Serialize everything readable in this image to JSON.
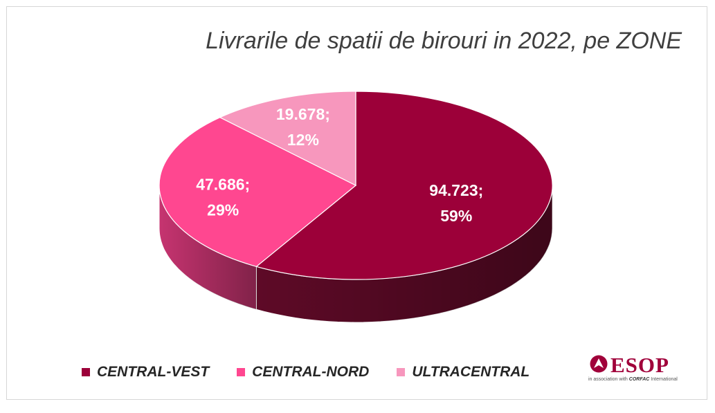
{
  "title": "Livrarile de spatii de birouri in 2022, pe ZONE",
  "chart_data": {
    "type": "pie",
    "title": "Livrarile de spatii de birouri in 2022, pe ZONE",
    "three_d": true,
    "legend_position": "bottom",
    "series": [
      {
        "name": "CENTRAL-VEST",
        "value": 94723,
        "value_label": "94.723",
        "percent": 59,
        "percent_label": "59%",
        "color": "#9c0039",
        "side_color": "#5e0a27"
      },
      {
        "name": "CENTRAL-NORD",
        "value": 47686,
        "value_label": "47.686",
        "percent": 29,
        "percent_label": "29%",
        "color": "#ff4790",
        "side_color": "#c63470"
      },
      {
        "name": "ULTRACENTRAL",
        "value": 19678,
        "value_label": "19.678",
        "percent": 12,
        "percent_label": "12%",
        "color": "#f797bd",
        "side_color": "#c97396"
      }
    ]
  },
  "logo": {
    "name": "ESOP",
    "tagline_prefix": "in association with",
    "tagline_brand": "CORFAC",
    "tagline_suffix": "International",
    "brand_color": "#a0003a"
  }
}
